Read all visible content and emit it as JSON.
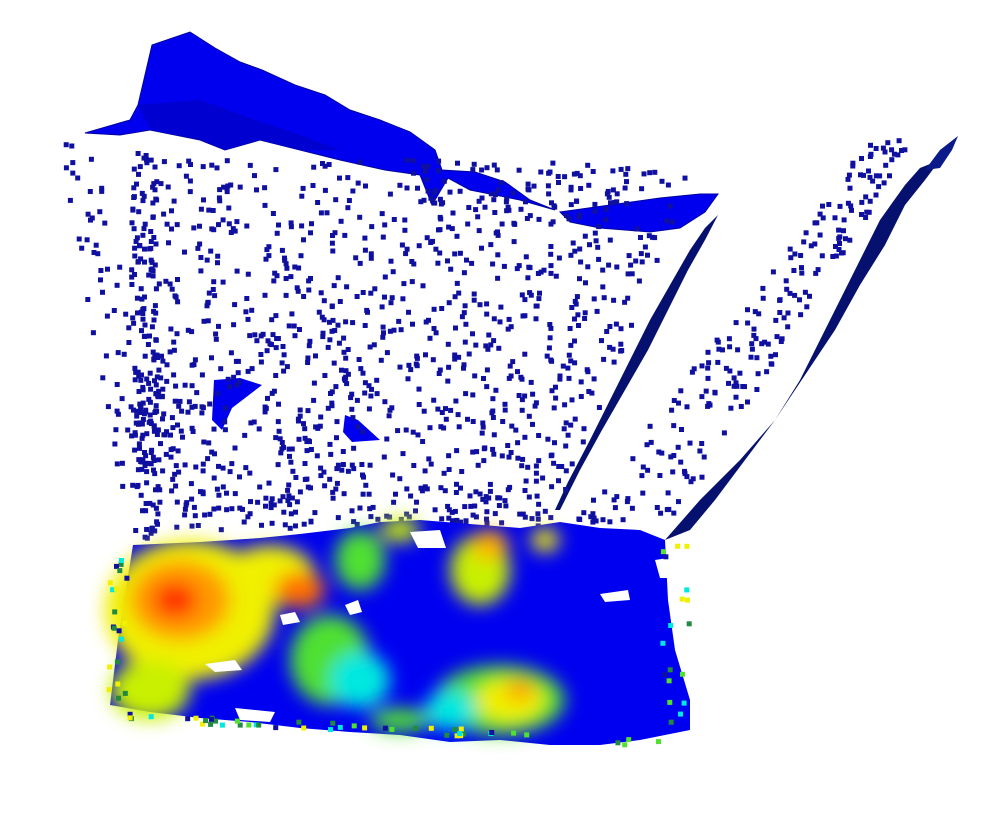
{
  "scene": {
    "background": "#ffffff",
    "palette": {
      "mesh_blue": "#0000ee",
      "mesh_dark": "#06106e",
      "point": "#1010a0",
      "heat_low": "#0000f0",
      "heat_cyan": "#00e8e0",
      "heat_green": "#50e030",
      "heat_yellow": "#f0f000",
      "heat_orange": "#ff9a00",
      "heat_red": "#ff3000"
    }
  }
}
